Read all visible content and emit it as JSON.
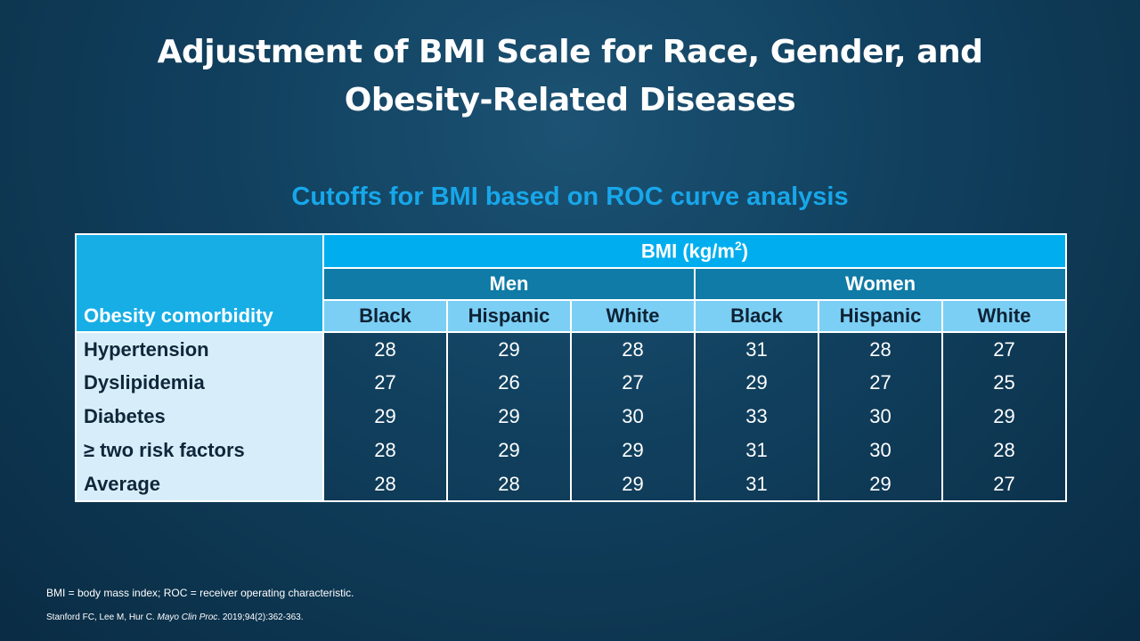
{
  "slide": {
    "title_line1": "Adjustment of BMI Scale for Race, Gender, and",
    "title_line2": "Obesity-Related Diseases",
    "subtitle": "Cutoffs for BMI based on ROC curve analysis"
  },
  "table": {
    "corner_label": "Obesity comorbidity",
    "bmi_label": "BMI (kg/m",
    "bmi_exp": "2",
    "bmi_close": ")",
    "groups": [
      "Men",
      "Women"
    ],
    "races": [
      "Black",
      "Hispanic",
      "White",
      "Black",
      "Hispanic",
      "White"
    ],
    "rows": [
      {
        "label": "Hypertension",
        "values": [
          "28",
          "29",
          "28",
          "31",
          "28",
          "27"
        ]
      },
      {
        "label": "Dyslipidemia",
        "values": [
          "27",
          "26",
          "27",
          "29",
          "27",
          "25"
        ]
      },
      {
        "label": "Diabetes",
        "values": [
          "29",
          "29",
          "30",
          "33",
          "30",
          "29"
        ]
      },
      {
        "label": "≥ two risk factors",
        "values": [
          "28",
          "29",
          "29",
          "31",
          "30",
          "28"
        ]
      },
      {
        "label": "Average",
        "values": [
          "28",
          "28",
          "29",
          "31",
          "29",
          "27"
        ]
      }
    ]
  },
  "footer": {
    "abbreviations": "BMI = body mass index; ROC = receiver operating characteristic.",
    "citation_authors": "Stanford  FC, Lee M, Hur C. ",
    "citation_journal": "Mayo Clin Proc",
    "citation_rest": ". 2019;94(2):362-363."
  },
  "colors": {
    "background": "#103f5d",
    "subtitle": "#17a7ea",
    "bmi_header": "#00aeef",
    "group_header": "#0f7ba6",
    "race_header": "#7ccff4",
    "row_label_bg": "#d7eefa"
  }
}
